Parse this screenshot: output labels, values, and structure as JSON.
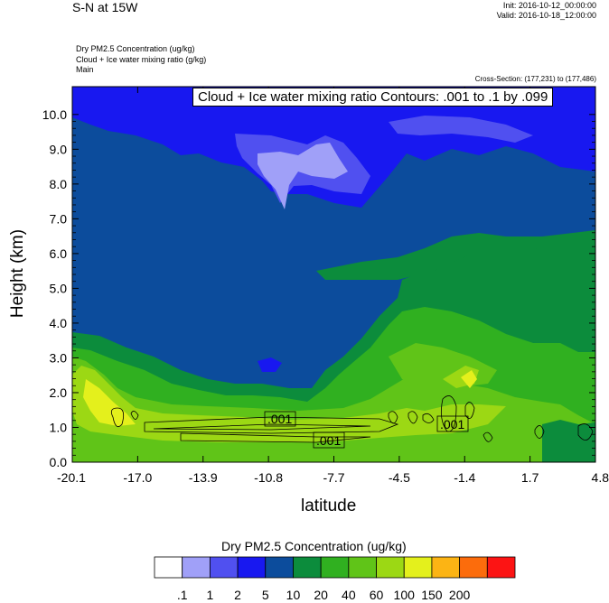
{
  "header": {
    "title": "S-N at 15W",
    "init": "Init: 2016-10-12_00:00:00",
    "valid": "Valid: 2016-10-18_12:00:00",
    "field_lines": [
      "Dry PM2.5 Concentration   (ug/kg)",
      "Cloud + Ice water mixing ratio   (g/kg)",
      "Main"
    ],
    "cross_section": "Cross-Section: (177,231) to (177,486)"
  },
  "contour_label": "Cloud + Ice water mixing ratio Contours: .001 to .1 by .099",
  "chart_data": {
    "type": "heatmap",
    "xlabel": "latitude",
    "ylabel": "Height (km)",
    "x_ticks": [
      "-20.1",
      "-17.0",
      "-13.9",
      "-10.8",
      "-7.7",
      "-4.5",
      "-1.4",
      "1.7",
      "4.8"
    ],
    "y_ticks": [
      "0.0",
      "1.0",
      "2.0",
      "3.0",
      "4.0",
      "5.0",
      "6.0",
      "7.0",
      "8.0",
      "9.0",
      "10.0"
    ],
    "xlim": [
      -20.1,
      4.8
    ],
    "ylim": [
      0,
      10.8
    ],
    "colorbar": {
      "title": "Dry PM2.5 Concentration  (ug/kg)",
      "levels": [
        ".1",
        "1",
        "2",
        "5",
        "10",
        "20",
        "40",
        "60",
        "100",
        "150",
        "200"
      ],
      "colors": [
        "#ffffff",
        "#a0a0f8",
        "#5050f0",
        "#1818f0",
        "#0c4c9c",
        "#0c8c3c",
        "#30b020",
        "#60c418",
        "#9cd814",
        "#e4f01c",
        "#fcb414",
        "#fc6c0c",
        "#fc1414"
      ]
    },
    "contour_labels": [
      ".001",
      ".001",
      ".001"
    ]
  }
}
